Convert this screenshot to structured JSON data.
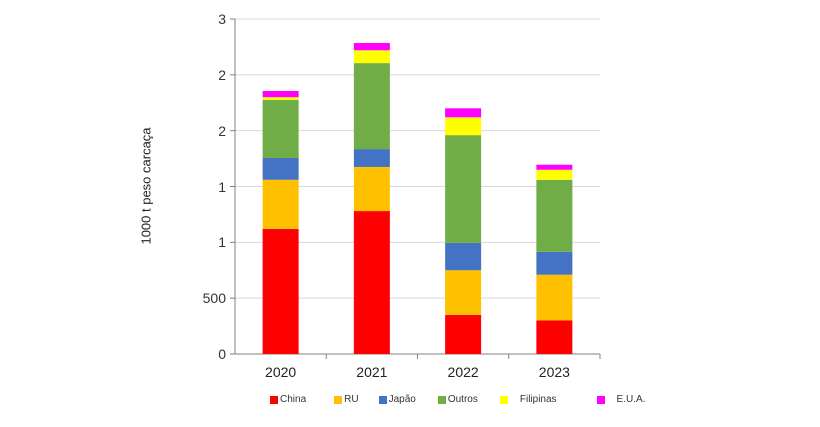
{
  "chart_data": {
    "type": "bar",
    "stacked": true,
    "title": "",
    "xlabel": "",
    "ylabel": "1000 t peso carcaça",
    "categories": [
      "2020",
      "2021",
      "2022",
      "2023"
    ],
    "ytick_labels": [
      "0",
      "500",
      "1",
      "1",
      "2",
      "2",
      "3"
    ],
    "ylim": [
      0,
      3000
    ],
    "grid": true,
    "legend_position": "bottom",
    "series": [
      {
        "name": "China",
        "color": "#FF0000",
        "values": [
          1120,
          1280,
          350,
          300
        ]
      },
      {
        "name": "RU",
        "color": "#FFC000",
        "values": [
          440,
          395,
          400,
          410
        ]
      },
      {
        "name": "Japão",
        "color": "#4472C4",
        "values": [
          195,
          160,
          245,
          205
        ]
      },
      {
        "name": "Outros",
        "color": "#70AD47",
        "values": [
          520,
          770,
          965,
          645
        ]
      },
      {
        "name": "Filipinas",
        "color": "#FFFF00",
        "values": [
          25,
          115,
          160,
          90
        ]
      },
      {
        "name": "E.U.A.",
        "color": "#FF00FF",
        "values": [
          55,
          65,
          80,
          45
        ]
      }
    ]
  }
}
